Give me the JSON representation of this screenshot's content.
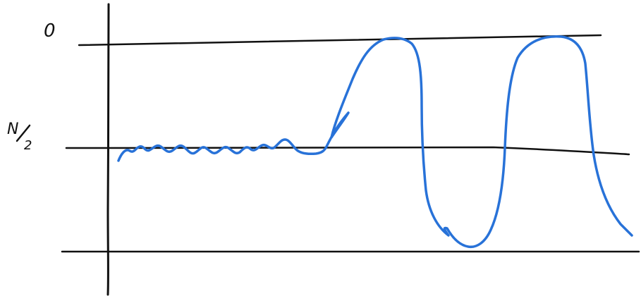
{
  "labels": {
    "top": "0",
    "middle_numerator": "N",
    "middle_denominator": "2"
  },
  "colors": {
    "ink": "#111111",
    "curve": "#2872d8",
    "background": "#ffffff"
  }
}
